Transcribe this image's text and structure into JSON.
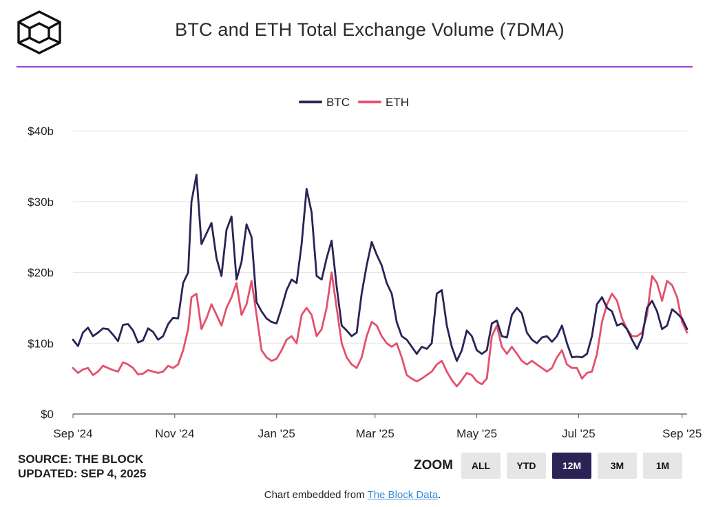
{
  "header": {
    "title": "BTC and ETH Total Exchange Volume (7DMA)"
  },
  "footer_left": {
    "source": "SOURCE: THE BLOCK",
    "updated": "UPDATED: SEP 4, 2025"
  },
  "zoom": {
    "label": "ZOOM",
    "buttons": [
      {
        "label": "ALL",
        "active": false
      },
      {
        "label": "YTD",
        "active": false
      },
      {
        "label": "12M",
        "active": true
      },
      {
        "label": "3M",
        "active": false
      },
      {
        "label": "1M",
        "active": false
      }
    ]
  },
  "embed": {
    "prefix": "Chart embedded from ",
    "link_text": "The Block Data",
    "suffix": "."
  },
  "colors": {
    "btc": "#2b2356",
    "eth": "#e4506c",
    "accent_rule": "#9b3fd6",
    "grid": "#e6e6e6",
    "active_button": "#2b2356"
  },
  "icons": {
    "logo": "the-block-cube-logo"
  },
  "chart_data": {
    "type": "line",
    "legend_position": "top-center",
    "grid": true,
    "y_tick_labels": [
      "$0",
      "$10b",
      "$20b",
      "$30b",
      "$40b"
    ],
    "y_tick_values": [
      0,
      10,
      20,
      30,
      40
    ],
    "ylim": [
      0,
      40
    ],
    "x_tick_labels": [
      "Sep '24",
      "Nov '24",
      "Jan '25",
      "Mar '25",
      "May '25",
      "Jul '25",
      "Sep '25"
    ],
    "x_tick_values": [
      "2024-09-01",
      "2024-11-01",
      "2025-01-01",
      "2025-03-01",
      "2025-05-01",
      "2025-07-01",
      "2025-09-01"
    ],
    "x_range": [
      "2024-09-01",
      "2025-09-04"
    ],
    "series": [
      {
        "name": "BTC",
        "points": [
          [
            "2024-09-01",
            10.5
          ],
          [
            "2024-09-04",
            9.6
          ],
          [
            "2024-09-07",
            11.5
          ],
          [
            "2024-09-10",
            12.2
          ],
          [
            "2024-09-13",
            11.0
          ],
          [
            "2024-09-16",
            11.5
          ],
          [
            "2024-09-19",
            12.1
          ],
          [
            "2024-09-22",
            12.0
          ],
          [
            "2024-09-25",
            11.2
          ],
          [
            "2024-09-28",
            10.3
          ],
          [
            "2024-10-01",
            12.6
          ],
          [
            "2024-10-04",
            12.7
          ],
          [
            "2024-10-07",
            11.8
          ],
          [
            "2024-10-10",
            10.1
          ],
          [
            "2024-10-13",
            10.4
          ],
          [
            "2024-10-16",
            12.1
          ],
          [
            "2024-10-19",
            11.6
          ],
          [
            "2024-10-22",
            10.5
          ],
          [
            "2024-10-25",
            11.0
          ],
          [
            "2024-10-28",
            12.7
          ],
          [
            "2024-10-31",
            13.6
          ],
          [
            "2024-11-03",
            13.5
          ],
          [
            "2024-11-06",
            18.5
          ],
          [
            "2024-11-09",
            20.0
          ],
          [
            "2024-11-11",
            30.0
          ],
          [
            "2024-11-14",
            33.8
          ],
          [
            "2024-11-17",
            24.0
          ],
          [
            "2024-11-20",
            25.5
          ],
          [
            "2024-11-23",
            27.0
          ],
          [
            "2024-11-26",
            22.0
          ],
          [
            "2024-11-29",
            19.5
          ],
          [
            "2024-12-02",
            26.0
          ],
          [
            "2024-12-05",
            27.9
          ],
          [
            "2024-12-08",
            19.0
          ],
          [
            "2024-12-11",
            21.5
          ],
          [
            "2024-12-14",
            26.8
          ],
          [
            "2024-12-17",
            25.0
          ],
          [
            "2024-12-20",
            15.8
          ],
          [
            "2024-12-23",
            14.5
          ],
          [
            "2024-12-26",
            13.5
          ],
          [
            "2024-12-29",
            13.0
          ],
          [
            "2025-01-01",
            12.8
          ],
          [
            "2025-01-04",
            15.0
          ],
          [
            "2025-01-07",
            17.5
          ],
          [
            "2025-01-10",
            19.0
          ],
          [
            "2025-01-13",
            18.5
          ],
          [
            "2025-01-16",
            24.0
          ],
          [
            "2025-01-19",
            31.8
          ],
          [
            "2025-01-22",
            28.5
          ],
          [
            "2025-01-25",
            19.5
          ],
          [
            "2025-01-28",
            19.0
          ],
          [
            "2025-01-31",
            22.0
          ],
          [
            "2025-02-03",
            24.5
          ],
          [
            "2025-02-06",
            18.0
          ],
          [
            "2025-02-09",
            12.5
          ],
          [
            "2025-02-12",
            11.8
          ],
          [
            "2025-02-15",
            11.0
          ],
          [
            "2025-02-18",
            11.5
          ],
          [
            "2025-02-21",
            17.0
          ],
          [
            "2025-02-24",
            21.0
          ],
          [
            "2025-02-27",
            24.3
          ],
          [
            "2025-03-02",
            22.5
          ],
          [
            "2025-03-05",
            21.0
          ],
          [
            "2025-03-08",
            18.5
          ],
          [
            "2025-03-11",
            17.0
          ],
          [
            "2025-03-14",
            13.0
          ],
          [
            "2025-03-17",
            11.0
          ],
          [
            "2025-03-20",
            10.5
          ],
          [
            "2025-03-23",
            9.5
          ],
          [
            "2025-03-26",
            8.5
          ],
          [
            "2025-03-29",
            9.5
          ],
          [
            "2025-04-01",
            9.2
          ],
          [
            "2025-04-04",
            10.0
          ],
          [
            "2025-04-07",
            17.0
          ],
          [
            "2025-04-10",
            17.5
          ],
          [
            "2025-04-13",
            12.5
          ],
          [
            "2025-04-16",
            9.5
          ],
          [
            "2025-04-19",
            7.5
          ],
          [
            "2025-04-22",
            9.0
          ],
          [
            "2025-04-25",
            11.8
          ],
          [
            "2025-04-28",
            11.0
          ],
          [
            "2025-05-01",
            9.0
          ],
          [
            "2025-05-04",
            8.5
          ],
          [
            "2025-05-07",
            9.0
          ],
          [
            "2025-05-10",
            12.8
          ],
          [
            "2025-05-13",
            13.2
          ],
          [
            "2025-05-16",
            11.0
          ],
          [
            "2025-05-19",
            10.8
          ],
          [
            "2025-05-22",
            14.0
          ],
          [
            "2025-05-25",
            15.0
          ],
          [
            "2025-05-28",
            14.2
          ],
          [
            "2025-05-31",
            11.5
          ],
          [
            "2025-06-03",
            10.5
          ],
          [
            "2025-06-06",
            10.0
          ],
          [
            "2025-06-09",
            10.8
          ],
          [
            "2025-06-12",
            11.0
          ],
          [
            "2025-06-15",
            10.2
          ],
          [
            "2025-06-18",
            11.0
          ],
          [
            "2025-06-21",
            12.5
          ],
          [
            "2025-06-24",
            10.0
          ],
          [
            "2025-06-27",
            8.0
          ],
          [
            "2025-06-30",
            8.1
          ],
          [
            "2025-07-03",
            8.0
          ],
          [
            "2025-07-06",
            8.5
          ],
          [
            "2025-07-09",
            11.0
          ],
          [
            "2025-07-12",
            15.5
          ],
          [
            "2025-07-15",
            16.5
          ],
          [
            "2025-07-18",
            15.0
          ],
          [
            "2025-07-21",
            14.5
          ],
          [
            "2025-07-24",
            12.5
          ],
          [
            "2025-07-27",
            12.8
          ],
          [
            "2025-07-30",
            12.0
          ],
          [
            "2025-08-02",
            10.5
          ],
          [
            "2025-08-05",
            9.2
          ],
          [
            "2025-08-08",
            10.8
          ],
          [
            "2025-08-11",
            15.0
          ],
          [
            "2025-08-14",
            16.0
          ],
          [
            "2025-08-17",
            14.5
          ],
          [
            "2025-08-20",
            12.0
          ],
          [
            "2025-08-23",
            12.5
          ],
          [
            "2025-08-26",
            14.8
          ],
          [
            "2025-08-29",
            14.2
          ],
          [
            "2025-09-01",
            13.5
          ],
          [
            "2025-09-04",
            12.0
          ]
        ]
      },
      {
        "name": "ETH",
        "points": [
          [
            "2024-09-01",
            6.5
          ],
          [
            "2024-09-04",
            5.8
          ],
          [
            "2024-09-07",
            6.3
          ],
          [
            "2024-09-10",
            6.5
          ],
          [
            "2024-09-13",
            5.5
          ],
          [
            "2024-09-16",
            6.0
          ],
          [
            "2024-09-19",
            6.8
          ],
          [
            "2024-09-22",
            6.5
          ],
          [
            "2024-09-25",
            6.2
          ],
          [
            "2024-09-28",
            6.0
          ],
          [
            "2024-10-01",
            7.3
          ],
          [
            "2024-10-04",
            7.0
          ],
          [
            "2024-10-07",
            6.5
          ],
          [
            "2024-10-10",
            5.6
          ],
          [
            "2024-10-13",
            5.7
          ],
          [
            "2024-10-16",
            6.2
          ],
          [
            "2024-10-19",
            6.0
          ],
          [
            "2024-10-22",
            5.8
          ],
          [
            "2024-10-25",
            6.0
          ],
          [
            "2024-10-28",
            6.8
          ],
          [
            "2024-10-31",
            6.5
          ],
          [
            "2024-11-03",
            7.0
          ],
          [
            "2024-11-06",
            9.0
          ],
          [
            "2024-11-09",
            12.0
          ],
          [
            "2024-11-11",
            16.5
          ],
          [
            "2024-11-14",
            17.0
          ],
          [
            "2024-11-17",
            12.0
          ],
          [
            "2024-11-20",
            13.5
          ],
          [
            "2024-11-23",
            15.5
          ],
          [
            "2024-11-26",
            14.0
          ],
          [
            "2024-11-29",
            12.5
          ],
          [
            "2024-12-02",
            15.0
          ],
          [
            "2024-12-05",
            16.5
          ],
          [
            "2024-12-08",
            18.5
          ],
          [
            "2024-12-11",
            14.0
          ],
          [
            "2024-12-14",
            15.5
          ],
          [
            "2024-12-17",
            18.8
          ],
          [
            "2024-12-20",
            14.0
          ],
          [
            "2024-12-23",
            9.0
          ],
          [
            "2024-12-26",
            8.0
          ],
          [
            "2024-12-29",
            7.5
          ],
          [
            "2025-01-01",
            7.8
          ],
          [
            "2025-01-04",
            9.0
          ],
          [
            "2025-01-07",
            10.5
          ],
          [
            "2025-01-10",
            11.0
          ],
          [
            "2025-01-13",
            10.0
          ],
          [
            "2025-01-16",
            14.0
          ],
          [
            "2025-01-19",
            15.0
          ],
          [
            "2025-01-22",
            14.0
          ],
          [
            "2025-01-25",
            11.0
          ],
          [
            "2025-01-28",
            12.0
          ],
          [
            "2025-01-31",
            15.0
          ],
          [
            "2025-02-03",
            20.0
          ],
          [
            "2025-02-06",
            15.0
          ],
          [
            "2025-02-09",
            10.0
          ],
          [
            "2025-02-12",
            8.0
          ],
          [
            "2025-02-15",
            7.0
          ],
          [
            "2025-02-18",
            6.5
          ],
          [
            "2025-02-21",
            8.0
          ],
          [
            "2025-02-24",
            11.0
          ],
          [
            "2025-02-27",
            13.0
          ],
          [
            "2025-03-02",
            12.5
          ],
          [
            "2025-03-05",
            11.0
          ],
          [
            "2025-03-08",
            10.0
          ],
          [
            "2025-03-11",
            9.5
          ],
          [
            "2025-03-14",
            10.0
          ],
          [
            "2025-03-17",
            8.0
          ],
          [
            "2025-03-20",
            5.5
          ],
          [
            "2025-03-23",
            5.0
          ],
          [
            "2025-03-26",
            4.6
          ],
          [
            "2025-03-29",
            5.0
          ],
          [
            "2025-04-01",
            5.5
          ],
          [
            "2025-04-04",
            6.0
          ],
          [
            "2025-04-07",
            7.0
          ],
          [
            "2025-04-10",
            7.5
          ],
          [
            "2025-04-13",
            6.0
          ],
          [
            "2025-04-16",
            4.8
          ],
          [
            "2025-04-19",
            3.9
          ],
          [
            "2025-04-22",
            4.8
          ],
          [
            "2025-04-25",
            5.8
          ],
          [
            "2025-04-28",
            5.5
          ],
          [
            "2025-05-01",
            4.6
          ],
          [
            "2025-05-04",
            4.2
          ],
          [
            "2025-05-07",
            5.0
          ],
          [
            "2025-05-10",
            11.0
          ],
          [
            "2025-05-13",
            12.5
          ],
          [
            "2025-05-16",
            9.5
          ],
          [
            "2025-05-19",
            8.5
          ],
          [
            "2025-05-22",
            9.5
          ],
          [
            "2025-05-25",
            8.5
          ],
          [
            "2025-05-28",
            7.5
          ],
          [
            "2025-05-31",
            7.0
          ],
          [
            "2025-06-03",
            7.5
          ],
          [
            "2025-06-06",
            7.0
          ],
          [
            "2025-06-09",
            6.5
          ],
          [
            "2025-06-12",
            6.0
          ],
          [
            "2025-06-15",
            6.5
          ],
          [
            "2025-06-18",
            8.0
          ],
          [
            "2025-06-21",
            9.0
          ],
          [
            "2025-06-24",
            7.0
          ],
          [
            "2025-06-27",
            6.5
          ],
          [
            "2025-06-30",
            6.5
          ],
          [
            "2025-07-03",
            5.0
          ],
          [
            "2025-07-06",
            5.8
          ],
          [
            "2025-07-09",
            6.0
          ],
          [
            "2025-07-12",
            8.5
          ],
          [
            "2025-07-15",
            13.0
          ],
          [
            "2025-07-18",
            15.5
          ],
          [
            "2025-07-21",
            17.0
          ],
          [
            "2025-07-24",
            16.0
          ],
          [
            "2025-07-27",
            13.5
          ],
          [
            "2025-07-30",
            12.0
          ],
          [
            "2025-08-02",
            11.0
          ],
          [
            "2025-08-05",
            11.0
          ],
          [
            "2025-08-08",
            11.5
          ],
          [
            "2025-08-11",
            14.0
          ],
          [
            "2025-08-14",
            19.5
          ],
          [
            "2025-08-17",
            18.5
          ],
          [
            "2025-08-20",
            16.0
          ],
          [
            "2025-08-23",
            18.8
          ],
          [
            "2025-08-26",
            18.2
          ],
          [
            "2025-08-29",
            16.5
          ],
          [
            "2025-09-01",
            13.0
          ],
          [
            "2025-09-04",
            11.5
          ]
        ]
      }
    ]
  }
}
